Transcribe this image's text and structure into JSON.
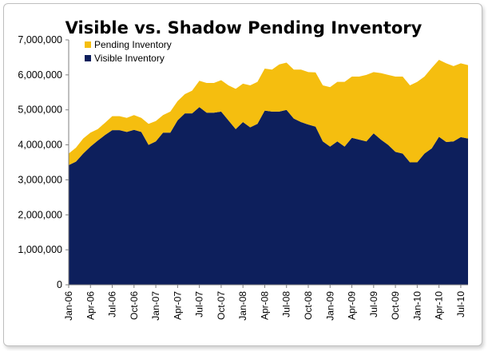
{
  "chart_data": {
    "type": "area",
    "stacked": true,
    "title": "Visible vs. Shadow Pending Inventory",
    "xlabel": "",
    "ylabel": "",
    "ylim": [
      0,
      7000000
    ],
    "y_ticks": [
      "0",
      "1,000,000",
      "2,000,000",
      "3,000,000",
      "4,000,000",
      "5,000,000",
      "6,000,000",
      "7,000,000"
    ],
    "y_tick_values": [
      0,
      1000000,
      2000000,
      3000000,
      4000000,
      5000000,
      6000000,
      7000000
    ],
    "x_tick_labels": [
      "Jan-06",
      "Apr-06",
      "Jul-06",
      "Oct-06",
      "Jan-07",
      "Apr-07",
      "Jul-07",
      "Oct-07",
      "Jan-08",
      "Apr-08",
      "Jul-08",
      "Oct-08",
      "Jan-09",
      "Apr-09",
      "Jul-09",
      "Oct-09",
      "Jan-10",
      "Apr-10",
      "Jul-10"
    ],
    "x_tick_every": 3,
    "grid": false,
    "legend_position": "top-left",
    "categories": [
      "Jan-06",
      "Feb-06",
      "Mar-06",
      "Apr-06",
      "May-06",
      "Jun-06",
      "Jul-06",
      "Aug-06",
      "Sep-06",
      "Oct-06",
      "Nov-06",
      "Dec-06",
      "Jan-07",
      "Feb-07",
      "Mar-07",
      "Apr-07",
      "May-07",
      "Jun-07",
      "Jul-07",
      "Aug-07",
      "Sep-07",
      "Oct-07",
      "Nov-07",
      "Dec-07",
      "Jan-08",
      "Feb-08",
      "Mar-08",
      "Apr-08",
      "May-08",
      "Jun-08",
      "Jul-08",
      "Aug-08",
      "Sep-08",
      "Oct-08",
      "Nov-08",
      "Dec-08",
      "Jan-09",
      "Feb-09",
      "Mar-09",
      "Apr-09",
      "May-09",
      "Jun-09",
      "Jul-09",
      "Aug-09",
      "Sep-09",
      "Oct-09",
      "Nov-09",
      "Dec-09",
      "Jan-10",
      "Feb-10",
      "Mar-10",
      "Apr-10",
      "May-10",
      "Jun-10",
      "Jul-10",
      "Aug-10"
    ],
    "series": [
      {
        "name": "Visible Inventory",
        "color": "#0d1f5c",
        "values": [
          3420000,
          3520000,
          3750000,
          3950000,
          4120000,
          4280000,
          4420000,
          4420000,
          4370000,
          4430000,
          4370000,
          4000000,
          4100000,
          4350000,
          4350000,
          4700000,
          4900000,
          4900000,
          5080000,
          4920000,
          4920000,
          4950000,
          4700000,
          4450000,
          4650000,
          4500000,
          4600000,
          4980000,
          4950000,
          4950000,
          5000000,
          4750000,
          4650000,
          4580000,
          4520000,
          4100000,
          3950000,
          4100000,
          3950000,
          4200000,
          4150000,
          4100000,
          4330000,
          4150000,
          4000000,
          3800000,
          3750000,
          3500000,
          3500000,
          3750000,
          3900000,
          4230000,
          4080000,
          4100000,
          4220000,
          4180000
        ]
      },
      {
        "name": "Pending Inventory",
        "color": "#f5be0f",
        "values": [
          330000,
          400000,
          430000,
          400000,
          330000,
          350000,
          400000,
          400000,
          400000,
          420000,
          400000,
          600000,
          580000,
          500000,
          600000,
          550000,
          550000,
          650000,
          750000,
          850000,
          850000,
          900000,
          1000000,
          1150000,
          1100000,
          1200000,
          1200000,
          1200000,
          1200000,
          1350000,
          1350000,
          1400000,
          1500000,
          1500000,
          1550000,
          1600000,
          1700000,
          1700000,
          1850000,
          1750000,
          1800000,
          1900000,
          1750000,
          1900000,
          2000000,
          2150000,
          2200000,
          2200000,
          2300000,
          2200000,
          2300000,
          2200000,
          2250000,
          2150000,
          2110000,
          2100000
        ]
      }
    ]
  }
}
